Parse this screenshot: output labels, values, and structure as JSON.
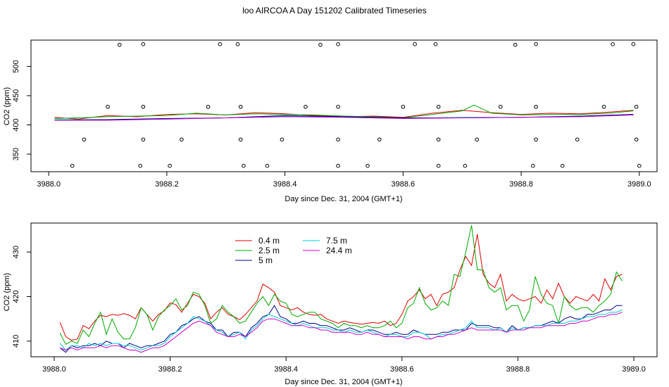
{
  "title": "loo AIRCOA A  Day 151202  Calibrated Timeseries",
  "chart_data": [
    {
      "type": "scatter+line",
      "xlabel": "Day since Dec. 31, 2004 (GMT+1)",
      "ylabel": "CO2 (ppm)",
      "xlim": [
        3987.97,
        3989.03
      ],
      "ylim": [
        320,
        545
      ],
      "xticks": [
        3988.0,
        3988.2,
        3988.4,
        3988.6,
        3988.8,
        3989.0
      ],
      "xtick_labels": [
        "3988.0",
        "3988.2",
        "3988.4",
        "3988.6",
        "3988.8",
        "3989.0"
      ],
      "yticks": [
        350,
        400,
        450,
        500
      ],
      "ytick_labels": [
        "350",
        "400",
        "450",
        "500"
      ],
      "reference_points": {
        "marker": "open-circle",
        "x": [
          3988.12,
          3988.16,
          3988.29,
          3988.32,
          3988.46,
          3988.49,
          3988.62,
          3988.655,
          3988.79,
          3988.825,
          3988.955,
          3988.99,
          3988.1,
          3988.16,
          3988.27,
          3988.325,
          3988.435,
          3988.49,
          3988.6,
          3988.66,
          3988.765,
          3988.825,
          3988.94,
          3988.995,
          3988.06,
          3988.16,
          3988.225,
          3988.325,
          3988.395,
          3988.49,
          3988.56,
          3988.66,
          3988.725,
          3988.825,
          3988.895,
          3988.995,
          3988.04,
          3988.155,
          3988.205,
          3988.33,
          3988.37,
          3988.49,
          3988.54,
          3988.66,
          3988.705,
          3988.82,
          3988.87,
          3989.0
        ],
        "y": [
          537,
          538,
          538,
          538,
          537,
          538,
          538,
          538,
          537,
          538,
          538,
          538,
          431,
          431,
          431,
          431,
          431,
          431,
          431,
          431,
          431,
          431,
          431,
          431,
          375,
          375,
          375,
          375,
          375,
          375,
          375,
          375,
          375,
          375,
          375,
          375,
          330,
          330,
          330,
          330,
          330,
          330,
          330,
          330,
          330,
          330,
          330,
          330
        ]
      },
      "series": [
        {
          "color": "#dd0000",
          "x": [
            3988.01,
            3988.05,
            3988.1,
            3988.15,
            3988.2,
            3988.25,
            3988.3,
            3988.35,
            3988.4,
            3988.45,
            3988.5,
            3988.55,
            3988.6,
            3988.65,
            3988.7,
            3988.75,
            3988.8,
            3988.85,
            3988.9,
            3988.95,
            3988.99
          ],
          "y": [
            413,
            410,
            416,
            414,
            418,
            419,
            417,
            421,
            419,
            416,
            414,
            415,
            413,
            420,
            425,
            421,
            418,
            420,
            419,
            422,
            425
          ]
        },
        {
          "color": "#00aa00",
          "x": [
            3988.01,
            3988.05,
            3988.1,
            3988.15,
            3988.2,
            3988.25,
            3988.3,
            3988.35,
            3988.4,
            3988.45,
            3988.5,
            3988.55,
            3988.6,
            3988.65,
            3988.7,
            3988.72,
            3988.75,
            3988.8,
            3988.85,
            3988.9,
            3988.95,
            3988.99
          ],
          "y": [
            411,
            412,
            414,
            415,
            416,
            420,
            417,
            419,
            418,
            417,
            415,
            414,
            412,
            418,
            424,
            434,
            420,
            417,
            418,
            418,
            420,
            424
          ]
        },
        {
          "color": "#00cccc",
          "x": [
            3988.01,
            3988.1,
            3988.2,
            3988.3,
            3988.4,
            3988.5,
            3988.6,
            3988.7,
            3988.8,
            3988.9,
            3988.99
          ],
          "y": [
            409,
            409,
            410,
            412,
            415,
            413,
            411,
            413,
            413,
            414,
            418
          ]
        },
        {
          "color": "#000088",
          "x": [
            3988.01,
            3988.1,
            3988.2,
            3988.3,
            3988.4,
            3988.5,
            3988.6,
            3988.7,
            3988.8,
            3988.9,
            3988.99
          ],
          "y": [
            408,
            409,
            411,
            412,
            416,
            414,
            412,
            412,
            413,
            415,
            418
          ]
        },
        {
          "color": "#cc00cc",
          "x": [
            3988.01,
            3988.1,
            3988.2,
            3988.3,
            3988.4,
            3988.5,
            3988.6,
            3988.7,
            3988.8,
            3988.9,
            3988.99
          ],
          "y": [
            408,
            408,
            410,
            412,
            414,
            413,
            411,
            412,
            413,
            414,
            417
          ]
        }
      ]
    },
    {
      "type": "line",
      "xlabel": "Day since Dec. 31, 2004 (GMT+1)",
      "ylabel": "CO2 (ppm)",
      "xlim": [
        3987.96,
        3989.04
      ],
      "ylim": [
        406.5,
        436.5
      ],
      "xticks": [
        3988.0,
        3988.2,
        3988.4,
        3988.6,
        3988.8,
        3989.0
      ],
      "xtick_labels": [
        "3988.0",
        "3988.2",
        "3988.4",
        "3988.6",
        "3988.8",
        "3989.0"
      ],
      "yticks": [
        410,
        420,
        430
      ],
      "ytick_labels": [
        "410",
        "420",
        "430"
      ],
      "legend": {
        "placement": "top-left",
        "entries": [
          {
            "label": "0.4 m",
            "color": "#dd0000"
          },
          {
            "label": "2.5 m",
            "color": "#00aa00"
          },
          {
            "label": "5 m",
            "color": "#000088"
          },
          {
            "label": "7.5 m",
            "color": "#00cccc"
          },
          {
            "label": "24.4 m",
            "color": "#cc00cc"
          }
        ]
      },
      "x": [
        3988.01,
        3988.02,
        3988.03,
        3988.04,
        3988.05,
        3988.06,
        3988.07,
        3988.08,
        3988.09,
        3988.1,
        3988.11,
        3988.12,
        3988.13,
        3988.14,
        3988.15,
        3988.16,
        3988.17,
        3988.18,
        3988.19,
        3988.2,
        3988.21,
        3988.22,
        3988.23,
        3988.24,
        3988.25,
        3988.26,
        3988.27,
        3988.28,
        3988.29,
        3988.3,
        3988.31,
        3988.32,
        3988.33,
        3988.34,
        3988.35,
        3988.36,
        3988.37,
        3988.38,
        3988.39,
        3988.4,
        3988.41,
        3988.42,
        3988.43,
        3988.44,
        3988.45,
        3988.46,
        3988.47,
        3988.48,
        3988.49,
        3988.5,
        3988.51,
        3988.52,
        3988.53,
        3988.54,
        3988.55,
        3988.56,
        3988.57,
        3988.58,
        3988.59,
        3988.6,
        3988.61,
        3988.62,
        3988.63,
        3988.64,
        3988.65,
        3988.66,
        3988.67,
        3988.68,
        3988.69,
        3988.7,
        3988.71,
        3988.72,
        3988.73,
        3988.74,
        3988.75,
        3988.76,
        3988.77,
        3988.78,
        3988.79,
        3988.8,
        3988.81,
        3988.82,
        3988.83,
        3988.84,
        3988.85,
        3988.86,
        3988.87,
        3988.88,
        3988.89,
        3988.9,
        3988.91,
        3988.92,
        3988.93,
        3988.94,
        3988.95,
        3988.96,
        3988.97,
        3988.98
      ],
      "series": [
        {
          "name": "0.4 m",
          "color": "#dd0000",
          "values": [
            414.2,
            411.0,
            410.2,
            410.5,
            413.5,
            412.8,
            414.5,
            415.8,
            415.5,
            416.0,
            415.8,
            416.2,
            415.8,
            415.0,
            417.5,
            416.0,
            414.5,
            416.0,
            416.8,
            418.6,
            418.2,
            416.5,
            418.5,
            420.5,
            420.0,
            418.5,
            415.0,
            416.5,
            417.5,
            416.0,
            415.5,
            414.8,
            416.0,
            417.5,
            419.0,
            422.8,
            422.0,
            421.0,
            418.0,
            417.5,
            417.0,
            417.5,
            416.5,
            416.0,
            415.8,
            416.0,
            415.0,
            414.5,
            414.0,
            414.5,
            414.2,
            414.0,
            413.8,
            414.0,
            414.2,
            414.0,
            414.5,
            413.5,
            414.0,
            416.0,
            419.0,
            420.0,
            421.5,
            419.5,
            420.5,
            418.0,
            420.5,
            421.0,
            422.0,
            426.0,
            429.0,
            427.0,
            434.0,
            425.0,
            423.0,
            422.0,
            425.0,
            419.0,
            420.5,
            419.5,
            419.0,
            419.5,
            420.0,
            418.5,
            421.5,
            419.5,
            423.0,
            420.0,
            418.5,
            420.0,
            419.5,
            419.0,
            420.5,
            419.0,
            424.0,
            421.5,
            424.5,
            425.0
          ]
        },
        {
          "name": "2.5 m",
          "color": "#00aa00",
          "values": [
            411.8,
            409.3,
            410.0,
            409.5,
            412.5,
            411.0,
            414.0,
            416.5,
            411.5,
            415.0,
            412.0,
            410.5,
            410.5,
            413.0,
            417.5,
            416.0,
            412.5,
            415.5,
            417.0,
            418.0,
            419.5,
            417.0,
            418.0,
            421.0,
            420.5,
            418.0,
            414.0,
            415.0,
            418.0,
            416.5,
            415.5,
            414.0,
            414.5,
            416.5,
            418.5,
            420.0,
            418.0,
            420.5,
            419.0,
            418.5,
            416.0,
            415.5,
            416.0,
            416.5,
            416.5,
            415.0,
            414.5,
            414.0,
            413.0,
            414.0,
            413.5,
            413.5,
            413.0,
            413.5,
            413.0,
            413.0,
            413.5,
            414.5,
            413.0,
            414.0,
            417.5,
            418.5,
            422.0,
            418.5,
            417.0,
            417.5,
            419.0,
            418.0,
            425.0,
            424.5,
            430.0,
            436.0,
            426.0,
            426.0,
            422.0,
            421.0,
            422.0,
            417.0,
            418.0,
            418.0,
            414.5,
            417.0,
            424.5,
            420.5,
            418.5,
            418.0,
            414.0,
            420.0,
            418.0,
            417.0,
            417.5,
            417.5,
            416.5,
            418.0,
            419.0,
            420.5,
            425.5,
            423.5
          ]
        },
        {
          "name": "5 m",
          "color": "#000088",
          "values": [
            408.5,
            407.5,
            409.0,
            408.5,
            409.0,
            409.0,
            409.5,
            409.0,
            410.0,
            409.5,
            409.5,
            408.5,
            409.5,
            409.0,
            408.5,
            409.0,
            409.0,
            409.5,
            410.0,
            411.5,
            412.0,
            413.5,
            414.0,
            415.0,
            415.5,
            414.5,
            414.0,
            412.5,
            412.5,
            411.0,
            412.0,
            412.0,
            411.0,
            413.0,
            414.0,
            415.5,
            416.0,
            418.0,
            415.5,
            415.0,
            414.0,
            414.0,
            414.5,
            414.0,
            414.0,
            413.5,
            413.5,
            413.0,
            412.5,
            412.5,
            413.0,
            412.5,
            412.0,
            412.5,
            412.5,
            412.0,
            411.5,
            411.5,
            412.0,
            411.5,
            411.5,
            412.5,
            412.0,
            411.5,
            411.5,
            411.5,
            412.0,
            412.0,
            412.5,
            412.5,
            412.5,
            414.0,
            413.5,
            413.5,
            413.5,
            413.0,
            413.0,
            412.0,
            413.5,
            412.5,
            413.0,
            413.0,
            413.5,
            413.5,
            414.0,
            414.5,
            414.0,
            415.0,
            415.5,
            415.0,
            415.0,
            416.0,
            416.0,
            416.5,
            417.0,
            417.0,
            418.0,
            418.0
          ]
        },
        {
          "name": "7.5 m",
          "color": "#00cccc",
          "values": [
            409.5,
            408.0,
            409.0,
            409.0,
            408.5,
            409.5,
            409.0,
            409.5,
            409.0,
            409.5,
            409.5,
            409.0,
            409.0,
            408.5,
            408.0,
            408.5,
            409.0,
            409.0,
            409.5,
            411.0,
            412.0,
            413.0,
            414.0,
            415.5,
            415.0,
            414.5,
            413.5,
            412.5,
            412.0,
            411.0,
            411.5,
            412.0,
            410.5,
            412.5,
            413.5,
            415.0,
            416.0,
            415.5,
            415.0,
            414.5,
            414.0,
            413.5,
            414.0,
            413.5,
            413.0,
            413.0,
            413.0,
            412.5,
            412.5,
            412.0,
            412.5,
            412.0,
            412.0,
            412.5,
            412.0,
            411.5,
            411.0,
            411.5,
            411.5,
            411.0,
            411.0,
            412.0,
            412.0,
            411.5,
            410.5,
            411.0,
            411.5,
            411.5,
            412.0,
            412.5,
            413.0,
            414.5,
            413.0,
            413.0,
            413.0,
            412.5,
            413.0,
            412.0,
            413.0,
            412.5,
            413.0,
            413.0,
            413.5,
            413.5,
            413.5,
            414.0,
            414.0,
            414.0,
            414.5,
            414.5,
            415.0,
            415.5,
            415.5,
            416.0,
            416.0,
            416.5,
            416.5,
            417.0
          ]
        },
        {
          "name": "24.4 m",
          "color": "#cc00cc",
          "values": [
            408.5,
            408.0,
            408.5,
            408.0,
            408.5,
            408.5,
            408.5,
            409.0,
            408.5,
            409.0,
            409.0,
            408.5,
            408.0,
            408.0,
            407.5,
            408.0,
            408.5,
            408.5,
            409.0,
            410.0,
            411.0,
            412.0,
            413.0,
            414.0,
            414.5,
            414.0,
            413.5,
            412.0,
            411.5,
            411.0,
            411.0,
            411.5,
            411.0,
            412.0,
            413.0,
            414.5,
            415.0,
            415.0,
            414.5,
            414.0,
            413.5,
            413.5,
            413.5,
            413.0,
            413.0,
            412.5,
            412.5,
            412.0,
            412.0,
            412.0,
            412.0,
            411.5,
            411.5,
            412.0,
            411.5,
            411.5,
            411.0,
            411.0,
            411.0,
            411.0,
            410.5,
            411.0,
            411.0,
            410.5,
            410.5,
            411.0,
            411.0,
            411.5,
            411.5,
            412.0,
            412.5,
            413.0,
            412.5,
            412.5,
            412.5,
            412.5,
            412.5,
            412.0,
            412.5,
            412.5,
            412.5,
            413.0,
            413.0,
            413.0,
            413.5,
            413.5,
            413.5,
            413.5,
            414.0,
            414.0,
            414.5,
            414.5,
            415.0,
            415.5,
            415.5,
            416.0,
            416.0,
            416.5
          ]
        }
      ]
    }
  ]
}
